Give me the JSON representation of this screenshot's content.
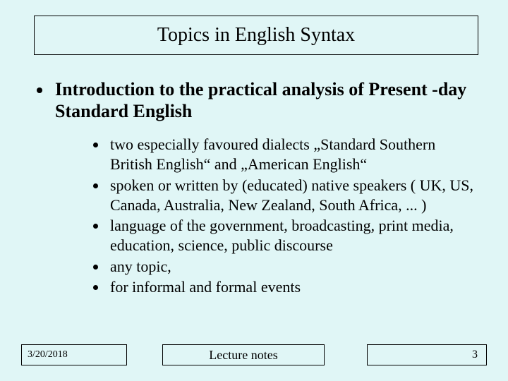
{
  "colors": {
    "background": "#e0f6f6",
    "text": "#000000",
    "border": "#000000"
  },
  "typography": {
    "font_family": "Times New Roman",
    "title_fontsize": 28,
    "main_bullet_fontsize": 26,
    "main_bullet_weight": "bold",
    "sub_bullet_fontsize": 22,
    "footer_date_fontsize": 14,
    "footer_center_fontsize": 18,
    "footer_page_fontsize": 16
  },
  "title": "Topics in English Syntax",
  "main_bullet": "Introduction to the practical analysis of  Present -day Standard English",
  "sub_bullets": [
    "two especially favoured dialects „Standard Southern British English“ and „American English“",
    "spoken or written by (educated) native speakers ( UK, US, Canada, Australia, New Zealand, South Africa, ... )",
    "language of the government, broadcasting, print media, education, science, public discourse",
    "any topic,",
    "for informal and formal events"
  ],
  "footer": {
    "date": "3/20/2018",
    "center": "Lecture notes",
    "page": "3"
  }
}
